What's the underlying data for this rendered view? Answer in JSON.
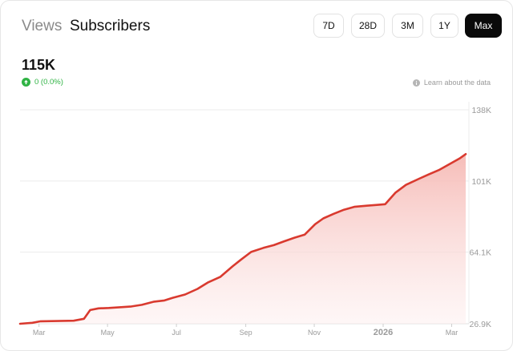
{
  "tabs": [
    {
      "label": "Views",
      "active": false
    },
    {
      "label": "Subscribers",
      "active": true
    }
  ],
  "ranges": [
    {
      "label": "7D",
      "selected": false
    },
    {
      "label": "28D",
      "selected": false
    },
    {
      "label": "3M",
      "selected": false
    },
    {
      "label": "1Y",
      "selected": false
    },
    {
      "label": "Max",
      "selected": true
    }
  ],
  "metric": {
    "value": "115K",
    "change": "0 (0.0%)",
    "change_icon": "arrow-up-icon",
    "change_color": "#2fb344"
  },
  "learn_link": {
    "label": "Learn about the data",
    "icon": "info-icon"
  },
  "chart_data": {
    "type": "area",
    "line_color": "#d93a2f",
    "fill_color": "#f7c6c2",
    "grid": true,
    "y_axis_side": "right",
    "y_ticks": [
      "138K",
      "101K",
      "64.1K",
      "26.9K"
    ],
    "y_tick_values": [
      138000,
      101000,
      64100,
      26900
    ],
    "ylim": [
      26900,
      138000
    ],
    "x_ticks": [
      "Mar",
      "May",
      "Jul",
      "Sep",
      "Nov",
      "2026",
      "Mar"
    ],
    "x_tick_values": [
      2025.166,
      2025.332,
      2025.499,
      2025.667,
      2025.833,
      2026.0,
      2026.166
    ],
    "xlim": [
      2025.12,
      2026.2
    ],
    "x": [
      2025.12,
      2025.15,
      2025.17,
      2025.21,
      2025.25,
      2025.275,
      2025.29,
      2025.31,
      2025.335,
      2025.365,
      2025.39,
      2025.415,
      2025.445,
      2025.47,
      2025.49,
      2025.52,
      2025.55,
      2025.575,
      2025.605,
      2025.635,
      2025.655,
      2025.68,
      2025.71,
      2025.735,
      2025.76,
      2025.785,
      2025.81,
      2025.835,
      2025.855,
      2025.88,
      2025.905,
      2025.93,
      2025.96,
      2025.985,
      2026.005,
      2026.03,
      2026.055,
      2026.085,
      2026.11,
      2026.135,
      2026.16,
      2026.185,
      2026.2
    ],
    "y": [
      26900,
      27400,
      28200,
      28300,
      28500,
      29500,
      34000,
      34900,
      35100,
      35500,
      35900,
      36700,
      38400,
      39000,
      40400,
      42100,
      45000,
      48300,
      51200,
      56700,
      60100,
      64200,
      66300,
      67700,
      69700,
      71600,
      73200,
      78600,
      81600,
      84000,
      86100,
      87600,
      88200,
      88600,
      89000,
      95000,
      99000,
      102000,
      104400,
      106700,
      109700,
      112700,
      115000
    ]
  }
}
